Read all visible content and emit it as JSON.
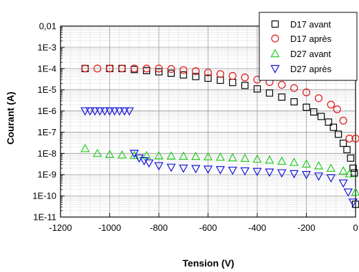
{
  "chart_data": {
    "type": "scatter",
    "title": "",
    "xlabel": "Tension (V)",
    "ylabel": "Courant (A)",
    "xlim": [
      -1200,
      0
    ],
    "ylim": [
      1e-11,
      0.01
    ],
    "yscale": "log",
    "grid": true,
    "legend_position": "top-right",
    "x_tick_labels": [
      "-1200",
      "-1000",
      "-800",
      "-600",
      "-400",
      "-200",
      "0"
    ],
    "x_ticks": [
      -1200,
      -1000,
      -800,
      -600,
      -400,
      -200,
      0
    ],
    "y_tick_labels": [
      "1E-11",
      "1E-10",
      "1E-9",
      "1E-8",
      "1E-7",
      "1E-6",
      "1E-5",
      "1E-4",
      "1E-3",
      "0,01"
    ],
    "y_ticks": [
      1e-11,
      1e-10,
      1e-09,
      1e-08,
      1e-07,
      1e-06,
      1e-05,
      0.0001,
      0.001,
      0.01
    ],
    "series": [
      {
        "name": "D17 avant",
        "marker": "square",
        "color": "#000000",
        "x": [
          -1100,
          -1000,
          -950,
          -900,
          -850,
          -800,
          -750,
          -700,
          -650,
          -600,
          -550,
          -500,
          -450,
          -400,
          -350,
          -300,
          -250,
          -200,
          -170,
          -140,
          -110,
          -90,
          -70,
          -50,
          -35,
          -20,
          -10,
          -5,
          0
        ],
        "y": [
          0.0001,
          0.0001,
          0.0001,
          9e-05,
          8e-05,
          7e-05,
          6e-05,
          5e-05,
          4.2e-05,
          3.5e-05,
          2.8e-05,
          2.2e-05,
          1.6e-05,
          1.1e-05,
          7e-06,
          4.5e-06,
          2.7e-06,
          1.5e-06,
          9e-07,
          5.5e-07,
          3e-07,
          1.7e-07,
          8e-08,
          3e-08,
          1.5e-08,
          6e-09,
          2e-09,
          1.2e-09,
          4e-11
        ]
      },
      {
        "name": "D17 après",
        "marker": "circle",
        "color": "#e01010",
        "x": [
          -1100,
          -1050,
          -1000,
          -950,
          -900,
          -850,
          -800,
          -750,
          -700,
          -650,
          -600,
          -550,
          -500,
          -450,
          -400,
          -350,
          -300,
          -250,
          -200,
          -150,
          -100,
          -75,
          -50,
          -25,
          0
        ],
        "y": [
          0.0001,
          0.0001,
          0.0001,
          0.0001,
          0.0001,
          0.0001,
          0.0001,
          9.5e-05,
          8.5e-05,
          7.5e-05,
          6.5e-05,
          5.5e-05,
          4.5e-05,
          3.8e-05,
          3e-05,
          2.3e-05,
          1.7e-05,
          1.2e-05,
          7.5e-06,
          4e-06,
          2e-06,
          1.2e-06,
          3.5e-07,
          5e-08,
          5e-08
        ]
      },
      {
        "name": "D27 avant",
        "marker": "triangle-up",
        "color": "#22cc22",
        "x": [
          -1100,
          -1050,
          -1000,
          -950,
          -900,
          -850,
          -800,
          -750,
          -700,
          -650,
          -600,
          -550,
          -500,
          -450,
          -400,
          -350,
          -300,
          -250,
          -200,
          -150,
          -100,
          -50,
          -25,
          0
        ],
        "y": [
          1.7e-08,
          1e-08,
          9e-09,
          8.5e-09,
          8.2e-09,
          8e-09,
          7.8e-09,
          7.6e-09,
          7.4e-09,
          7.2e-09,
          7e-09,
          6.7e-09,
          6.3e-09,
          5.9e-09,
          5.4e-09,
          4.9e-09,
          4.3e-09,
          3.8e-09,
          3.2e-09,
          2.6e-09,
          2e-09,
          1.5e-09,
          1.1e-09,
          1.5e-10
        ]
      },
      {
        "name": "D27 après",
        "marker": "triangle-down",
        "color": "#1010dd",
        "x": [
          -1100,
          -1080,
          -1060,
          -1040,
          -1020,
          -1000,
          -980,
          -960,
          -940,
          -920,
          -900,
          -880,
          -860,
          -840,
          -800,
          -750,
          -700,
          -650,
          -600,
          -550,
          -500,
          -450,
          -400,
          -350,
          -300,
          -250,
          -200,
          -150,
          -100,
          -50,
          -30,
          -10
        ],
        "y": [
          1e-06,
          1e-06,
          1e-06,
          1e-06,
          1e-06,
          1e-06,
          1e-06,
          1e-06,
          1e-06,
          1e-06,
          1e-08,
          6e-09,
          4.5e-09,
          3.5e-09,
          2.6e-09,
          2.2e-09,
          2e-09,
          1.9e-09,
          1.8e-09,
          1.7e-09,
          1.6e-09,
          1.5e-09,
          1.4e-09,
          1.3e-09,
          1.2e-09,
          1.1e-09,
          1e-09,
          8.5e-10,
          7e-10,
          4e-10,
          1.5e-10,
          5e-11
        ]
      }
    ]
  }
}
